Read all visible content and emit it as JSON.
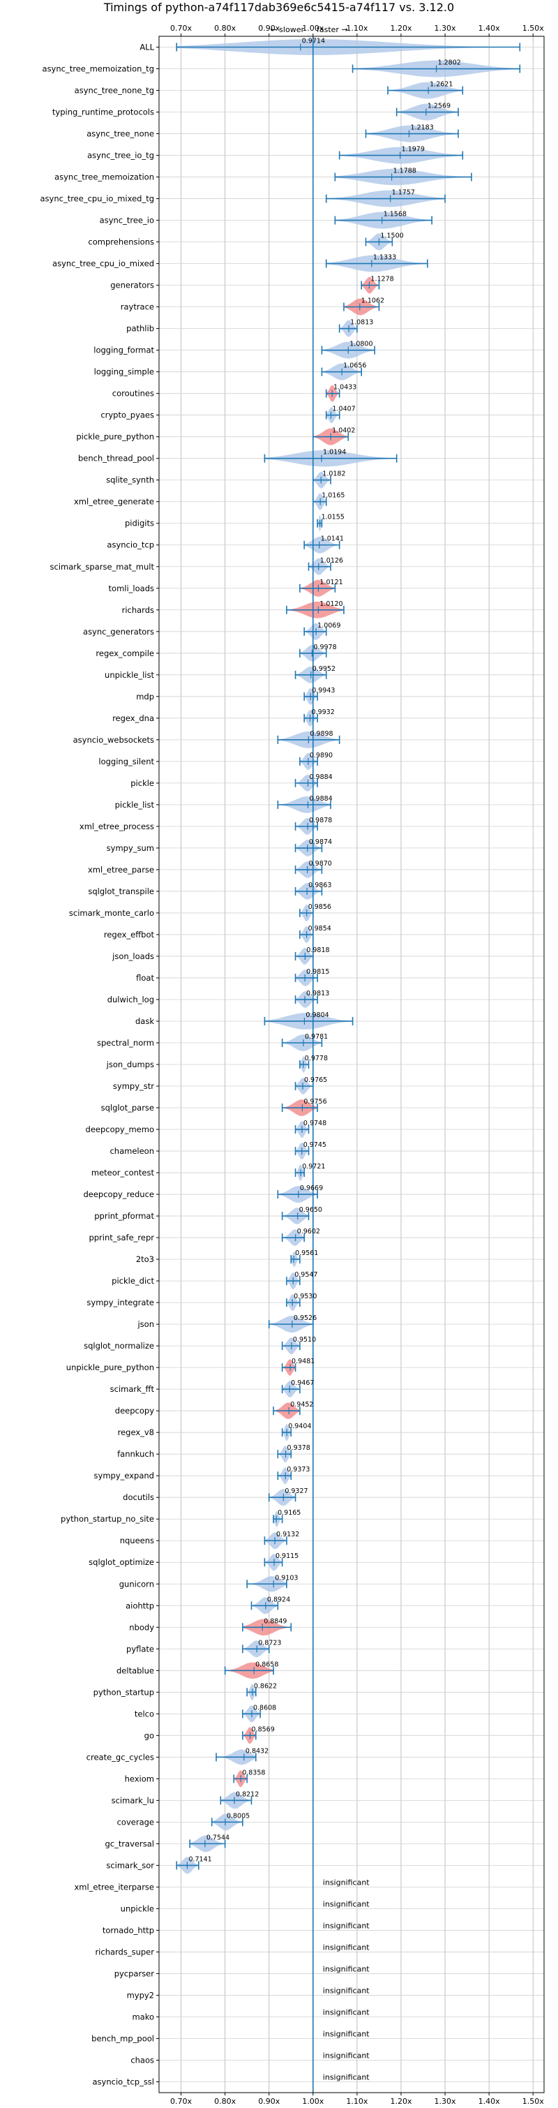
{
  "chart_data": {
    "type": "violin",
    "title": "Timings of python-a74f117dab369e6c5415-a74f117 vs. 3.12.0",
    "subtitle_left": "← slower",
    "subtitle_right": "faster →",
    "xlim": [
      0.65,
      1.525
    ],
    "xticks": [
      0.7,
      0.8,
      0.9,
      1.0,
      1.1,
      1.2,
      1.3,
      1.4,
      1.5
    ],
    "xtick_labels": [
      "0.70x",
      "0.80x",
      "0.90x",
      "1.00x",
      "1.10x",
      "1.20x",
      "1.30x",
      "1.40x",
      "1.50x"
    ],
    "reference_line": 1.0,
    "insignificant_label": "insignificant",
    "colors": {
      "normal": "#1f77b4",
      "highlight": "#f08080",
      "violin": "#aec7e8"
    },
    "benchmarks": [
      {
        "name": "ALL",
        "value": 0.9714,
        "label": "0.9714",
        "min": 0.69,
        "max": 1.47,
        "hl": false
      },
      {
        "name": "async_tree_memoization_tg",
        "value": 1.2802,
        "label": "1.2802",
        "min": 1.09,
        "max": 1.47,
        "hl": false
      },
      {
        "name": "async_tree_none_tg",
        "value": 1.2621,
        "label": "1.2621",
        "min": 1.17,
        "max": 1.34,
        "hl": false
      },
      {
        "name": "typing_runtime_protocols",
        "value": 1.2569,
        "label": "1.2569",
        "min": 1.19,
        "max": 1.33,
        "hl": false
      },
      {
        "name": "async_tree_none",
        "value": 1.2183,
        "label": "1.2183",
        "min": 1.12,
        "max": 1.33,
        "hl": false
      },
      {
        "name": "async_tree_io_tg",
        "value": 1.1979,
        "label": "1.1979",
        "min": 1.06,
        "max": 1.34,
        "hl": false
      },
      {
        "name": "async_tree_memoization",
        "value": 1.1788,
        "label": "1.1788",
        "min": 1.05,
        "max": 1.36,
        "hl": false
      },
      {
        "name": "async_tree_cpu_io_mixed_tg",
        "value": 1.1757,
        "label": "1.1757",
        "min": 1.03,
        "max": 1.3,
        "hl": false
      },
      {
        "name": "async_tree_io",
        "value": 1.1568,
        "label": "1.1568",
        "min": 1.05,
        "max": 1.27,
        "hl": false
      },
      {
        "name": "comprehensions",
        "value": 1.15,
        "label": "1.1500",
        "min": 1.12,
        "max": 1.18,
        "hl": false
      },
      {
        "name": "async_tree_cpu_io_mixed",
        "value": 1.1333,
        "label": "1.1333",
        "min": 1.03,
        "max": 1.26,
        "hl": false
      },
      {
        "name": "generators",
        "value": 1.1278,
        "label": "1.1278",
        "min": 1.11,
        "max": 1.15,
        "hl": true
      },
      {
        "name": "raytrace",
        "value": 1.1062,
        "label": "1.1062",
        "min": 1.07,
        "max": 1.15,
        "hl": true
      },
      {
        "name": "pathlib",
        "value": 1.0813,
        "label": "1.0813",
        "min": 1.06,
        "max": 1.1,
        "hl": false
      },
      {
        "name": "logging_format",
        "value": 1.08,
        "label": "1.0800",
        "min": 1.02,
        "max": 1.14,
        "hl": false
      },
      {
        "name": "logging_simple",
        "value": 1.0656,
        "label": "1.0656",
        "min": 1.02,
        "max": 1.11,
        "hl": false
      },
      {
        "name": "coroutines",
        "value": 1.0433,
        "label": "1.0433",
        "min": 1.03,
        "max": 1.06,
        "hl": true
      },
      {
        "name": "crypto_pyaes",
        "value": 1.0407,
        "label": "1.0407",
        "min": 1.03,
        "max": 1.06,
        "hl": false
      },
      {
        "name": "pickle_pure_python",
        "value": 1.0402,
        "label": "1.0402",
        "min": 1.0,
        "max": 1.08,
        "hl": true
      },
      {
        "name": "bench_thread_pool",
        "value": 1.0194,
        "label": "1.0194",
        "min": 0.89,
        "max": 1.19,
        "hl": false
      },
      {
        "name": "sqlite_synth",
        "value": 1.0182,
        "label": "1.0182",
        "min": 1.0,
        "max": 1.04,
        "hl": false
      },
      {
        "name": "xml_etree_generate",
        "value": 1.0165,
        "label": "1.0165",
        "min": 1.0,
        "max": 1.03,
        "hl": false
      },
      {
        "name": "pidigits",
        "value": 1.0155,
        "label": "1.0155",
        "min": 1.01,
        "max": 1.02,
        "hl": false
      },
      {
        "name": "asyncio_tcp",
        "value": 1.0141,
        "label": "1.0141",
        "min": 0.98,
        "max": 1.06,
        "hl": false
      },
      {
        "name": "scimark_sparse_mat_mult",
        "value": 1.0126,
        "label": "1.0126",
        "min": 0.99,
        "max": 1.04,
        "hl": false
      },
      {
        "name": "tomli_loads",
        "value": 1.0121,
        "label": "1.0121",
        "min": 0.97,
        "max": 1.05,
        "hl": true
      },
      {
        "name": "richards",
        "value": 1.012,
        "label": "1.0120",
        "min": 0.94,
        "max": 1.07,
        "hl": true
      },
      {
        "name": "async_generators",
        "value": 1.0069,
        "label": "1.0069",
        "min": 0.98,
        "max": 1.03,
        "hl": false
      },
      {
        "name": "regex_compile",
        "value": 0.9978,
        "label": "0.9978",
        "min": 0.97,
        "max": 1.03,
        "hl": false
      },
      {
        "name": "unpickle_list",
        "value": 0.9952,
        "label": "0.9952",
        "min": 0.96,
        "max": 1.03,
        "hl": false
      },
      {
        "name": "mdp",
        "value": 0.9943,
        "label": "0.9943",
        "min": 0.98,
        "max": 1.01,
        "hl": false
      },
      {
        "name": "regex_dna",
        "value": 0.9932,
        "label": "0.9932",
        "min": 0.98,
        "max": 1.01,
        "hl": false
      },
      {
        "name": "asyncio_websockets",
        "value": 0.9898,
        "label": "0.9898",
        "min": 0.92,
        "max": 1.06,
        "hl": false
      },
      {
        "name": "logging_silent",
        "value": 0.989,
        "label": "0.9890",
        "min": 0.97,
        "max": 1.01,
        "hl": false
      },
      {
        "name": "pickle",
        "value": 0.9884,
        "label": "0.9884",
        "min": 0.96,
        "max": 1.01,
        "hl": false
      },
      {
        "name": "pickle_list",
        "value": 0.9884,
        "label": "0.9884",
        "min": 0.92,
        "max": 1.04,
        "hl": false
      },
      {
        "name": "xml_etree_process",
        "value": 0.9878,
        "label": "0.9878",
        "min": 0.96,
        "max": 1.01,
        "hl": false
      },
      {
        "name": "sympy_sum",
        "value": 0.9874,
        "label": "0.9874",
        "min": 0.96,
        "max": 1.02,
        "hl": false
      },
      {
        "name": "xml_etree_parse",
        "value": 0.987,
        "label": "0.9870",
        "min": 0.96,
        "max": 1.02,
        "hl": false
      },
      {
        "name": "sqlglot_transpile",
        "value": 0.9863,
        "label": "0.9863",
        "min": 0.96,
        "max": 1.02,
        "hl": false
      },
      {
        "name": "scimark_monte_carlo",
        "value": 0.9856,
        "label": "0.9856",
        "min": 0.97,
        "max": 1.0,
        "hl": false
      },
      {
        "name": "regex_effbot",
        "value": 0.9854,
        "label": "0.9854",
        "min": 0.97,
        "max": 1.0,
        "hl": false
      },
      {
        "name": "json_loads",
        "value": 0.9818,
        "label": "0.9818",
        "min": 0.96,
        "max": 1.0,
        "hl": false
      },
      {
        "name": "float",
        "value": 0.9815,
        "label": "0.9815",
        "min": 0.96,
        "max": 1.01,
        "hl": false
      },
      {
        "name": "dulwich_log",
        "value": 0.9813,
        "label": "0.9813",
        "min": 0.96,
        "max": 1.01,
        "hl": false
      },
      {
        "name": "dask",
        "value": 0.9804,
        "label": "0.9804",
        "min": 0.89,
        "max": 1.09,
        "hl": false
      },
      {
        "name": "spectral_norm",
        "value": 0.9781,
        "label": "0.9781",
        "min": 0.93,
        "max": 1.02,
        "hl": false
      },
      {
        "name": "json_dumps",
        "value": 0.9778,
        "label": "0.9778",
        "min": 0.97,
        "max": 0.99,
        "hl": false
      },
      {
        "name": "sympy_str",
        "value": 0.9765,
        "label": "0.9765",
        "min": 0.96,
        "max": 1.0,
        "hl": false
      },
      {
        "name": "sqlglot_parse",
        "value": 0.9756,
        "label": "0.9756",
        "min": 0.93,
        "max": 1.01,
        "hl": true
      },
      {
        "name": "deepcopy_memo",
        "value": 0.9748,
        "label": "0.9748",
        "min": 0.96,
        "max": 0.99,
        "hl": false
      },
      {
        "name": "chameleon",
        "value": 0.9745,
        "label": "0.9745",
        "min": 0.96,
        "max": 0.99,
        "hl": false
      },
      {
        "name": "meteor_contest",
        "value": 0.9721,
        "label": "0.9721",
        "min": 0.96,
        "max": 0.98,
        "hl": false
      },
      {
        "name": "deepcopy_reduce",
        "value": 0.9669,
        "label": "0.9669",
        "min": 0.92,
        "max": 1.01,
        "hl": false
      },
      {
        "name": "pprint_pformat",
        "value": 0.965,
        "label": "0.9650",
        "min": 0.93,
        "max": 0.99,
        "hl": false
      },
      {
        "name": "pprint_safe_repr",
        "value": 0.9602,
        "label": "0.9602",
        "min": 0.93,
        "max": 0.98,
        "hl": false
      },
      {
        "name": "2to3",
        "value": 0.9561,
        "label": "0.9561",
        "min": 0.95,
        "max": 0.97,
        "hl": false
      },
      {
        "name": "pickle_dict",
        "value": 0.9547,
        "label": "0.9547",
        "min": 0.94,
        "max": 0.97,
        "hl": false
      },
      {
        "name": "sympy_integrate",
        "value": 0.953,
        "label": "0.9530",
        "min": 0.94,
        "max": 0.97,
        "hl": false
      },
      {
        "name": "json",
        "value": 0.9526,
        "label": "0.9526",
        "min": 0.9,
        "max": 1.0,
        "hl": false
      },
      {
        "name": "sqlglot_normalize",
        "value": 0.951,
        "label": "0.9510",
        "min": 0.93,
        "max": 0.97,
        "hl": false
      },
      {
        "name": "unpickle_pure_python",
        "value": 0.9481,
        "label": "0.9481",
        "min": 0.93,
        "max": 0.96,
        "hl": true
      },
      {
        "name": "scimark_fft",
        "value": 0.9467,
        "label": "0.9467",
        "min": 0.93,
        "max": 0.97,
        "hl": false
      },
      {
        "name": "deepcopy",
        "value": 0.9452,
        "label": "0.9452",
        "min": 0.91,
        "max": 0.97,
        "hl": true
      },
      {
        "name": "regex_v8",
        "value": 0.9404,
        "label": "0.9404",
        "min": 0.93,
        "max": 0.95,
        "hl": false
      },
      {
        "name": "fannkuch",
        "value": 0.9378,
        "label": "0.9378",
        "min": 0.92,
        "max": 0.95,
        "hl": false
      },
      {
        "name": "sympy_expand",
        "value": 0.9373,
        "label": "0.9373",
        "min": 0.92,
        "max": 0.95,
        "hl": false
      },
      {
        "name": "docutils",
        "value": 0.9327,
        "label": "0.9327",
        "min": 0.9,
        "max": 0.96,
        "hl": false
      },
      {
        "name": "python_startup_no_site",
        "value": 0.9165,
        "label": "0.9165",
        "min": 0.91,
        "max": 0.93,
        "hl": false
      },
      {
        "name": "nqueens",
        "value": 0.9132,
        "label": "0.9132",
        "min": 0.89,
        "max": 0.94,
        "hl": false
      },
      {
        "name": "sqlglot_optimize",
        "value": 0.9115,
        "label": "0.9115",
        "min": 0.89,
        "max": 0.93,
        "hl": false
      },
      {
        "name": "gunicorn",
        "value": 0.9103,
        "label": "0.9103",
        "min": 0.85,
        "max": 0.94,
        "hl": false
      },
      {
        "name": "aiohttp",
        "value": 0.8924,
        "label": "0.8924",
        "min": 0.86,
        "max": 0.92,
        "hl": false
      },
      {
        "name": "nbody",
        "value": 0.8849,
        "label": "0.8849",
        "min": 0.84,
        "max": 0.95,
        "hl": true
      },
      {
        "name": "pyflate",
        "value": 0.8723,
        "label": "0.8723",
        "min": 0.84,
        "max": 0.9,
        "hl": false
      },
      {
        "name": "deltablue",
        "value": 0.8658,
        "label": "0.8658",
        "min": 0.8,
        "max": 0.91,
        "hl": true
      },
      {
        "name": "python_startup",
        "value": 0.8622,
        "label": "0.8622",
        "min": 0.85,
        "max": 0.87,
        "hl": false
      },
      {
        "name": "telco",
        "value": 0.8608,
        "label": "0.8608",
        "min": 0.84,
        "max": 0.88,
        "hl": false
      },
      {
        "name": "go",
        "value": 0.8569,
        "label": "0.8569",
        "min": 0.84,
        "max": 0.87,
        "hl": true
      },
      {
        "name": "create_gc_cycles",
        "value": 0.8432,
        "label": "0.8432",
        "min": 0.78,
        "max": 0.87,
        "hl": false
      },
      {
        "name": "hexiom",
        "value": 0.8358,
        "label": "0.8358",
        "min": 0.82,
        "max": 0.85,
        "hl": true
      },
      {
        "name": "scimark_lu",
        "value": 0.8212,
        "label": "0.8212",
        "min": 0.79,
        "max": 0.86,
        "hl": false
      },
      {
        "name": "coverage",
        "value": 0.8005,
        "label": "0.8005",
        "min": 0.77,
        "max": 0.84,
        "hl": false
      },
      {
        "name": "gc_traversal",
        "value": 0.7544,
        "label": "0.7544",
        "min": 0.72,
        "max": 0.8,
        "hl": false
      },
      {
        "name": "scimark_sor",
        "value": 0.7141,
        "label": "0.7141",
        "min": 0.69,
        "max": 0.74,
        "hl": false
      },
      {
        "name": "xml_etree_iterparse",
        "value": null,
        "label": "",
        "min": null,
        "max": null,
        "hl": false
      },
      {
        "name": "unpickle",
        "value": null,
        "label": "",
        "min": null,
        "max": null,
        "hl": false
      },
      {
        "name": "tornado_http",
        "value": null,
        "label": "",
        "min": null,
        "max": null,
        "hl": false
      },
      {
        "name": "richards_super",
        "value": null,
        "label": "",
        "min": null,
        "max": null,
        "hl": false
      },
      {
        "name": "pycparser",
        "value": null,
        "label": "",
        "min": null,
        "max": null,
        "hl": false
      },
      {
        "name": "mypy2",
        "value": null,
        "label": "",
        "min": null,
        "max": null,
        "hl": false
      },
      {
        "name": "mako",
        "value": null,
        "label": "",
        "min": null,
        "max": null,
        "hl": false
      },
      {
        "name": "bench_mp_pool",
        "value": null,
        "label": "",
        "min": null,
        "max": null,
        "hl": false
      },
      {
        "name": "chaos",
        "value": null,
        "label": "",
        "min": null,
        "max": null,
        "hl": false
      },
      {
        "name": "asyncio_tcp_ssl",
        "value": null,
        "label": "",
        "min": null,
        "max": null,
        "hl": false
      }
    ]
  }
}
